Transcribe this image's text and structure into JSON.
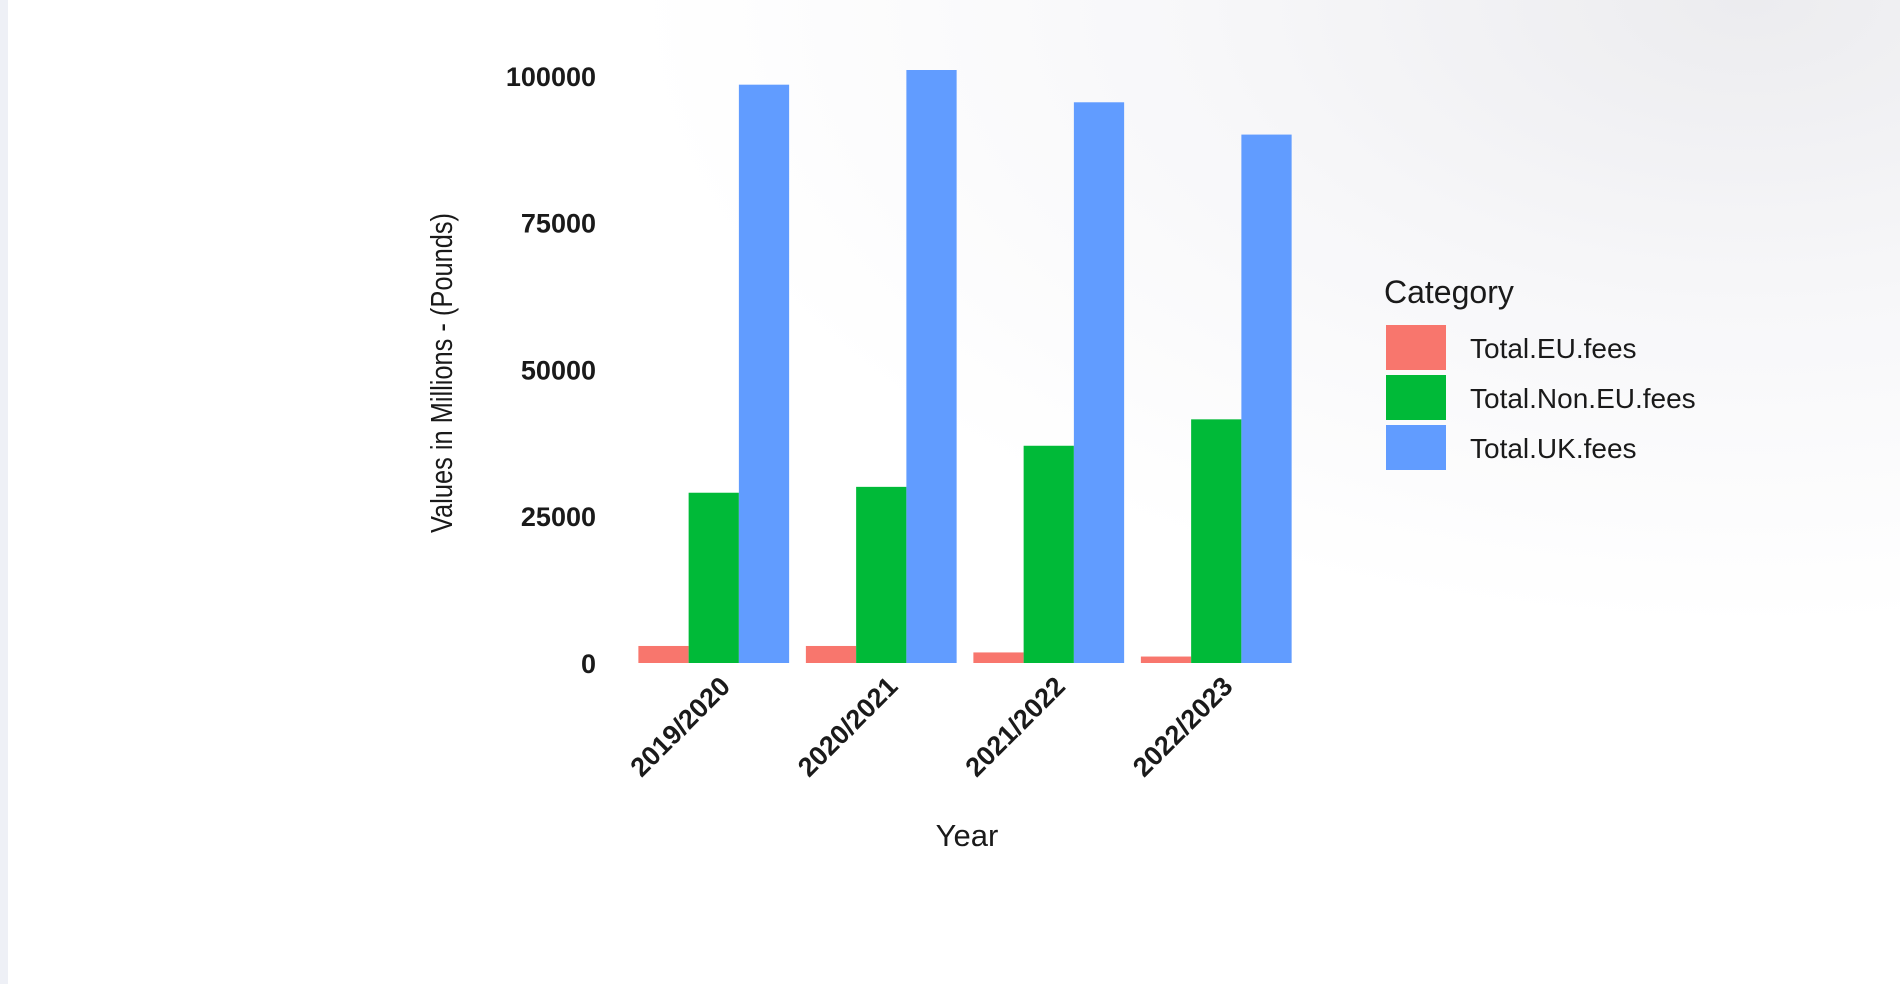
{
  "chart_data": {
    "type": "bar",
    "title": "",
    "xlabel": "Year",
    "ylabel": "Values in Millions - (Pounds)",
    "categories": [
      "2019/2020",
      "2020/2021",
      "2021/2022",
      "2022/2023"
    ],
    "series": [
      {
        "name": "Total.EU.fees",
        "color": "#F8766D",
        "values": [
          2900,
          2900,
          1800,
          1100
        ]
      },
      {
        "name": "Total.Non.EU.fees",
        "color": "#00BA38",
        "values": [
          29000,
          30000,
          37000,
          41500
        ]
      },
      {
        "name": "Total.UK.fees",
        "color": "#619CFF",
        "values": [
          98500,
          101000,
          95500,
          90000
        ]
      }
    ],
    "ylim": [
      0,
      101000
    ],
    "yticks": [
      0,
      25000,
      50000,
      75000,
      100000
    ],
    "ytick_labels": [
      "0",
      "25000",
      "50000",
      "75000",
      "100000"
    ],
    "legend": {
      "title": "Category",
      "position": "right"
    },
    "grid": false
  }
}
